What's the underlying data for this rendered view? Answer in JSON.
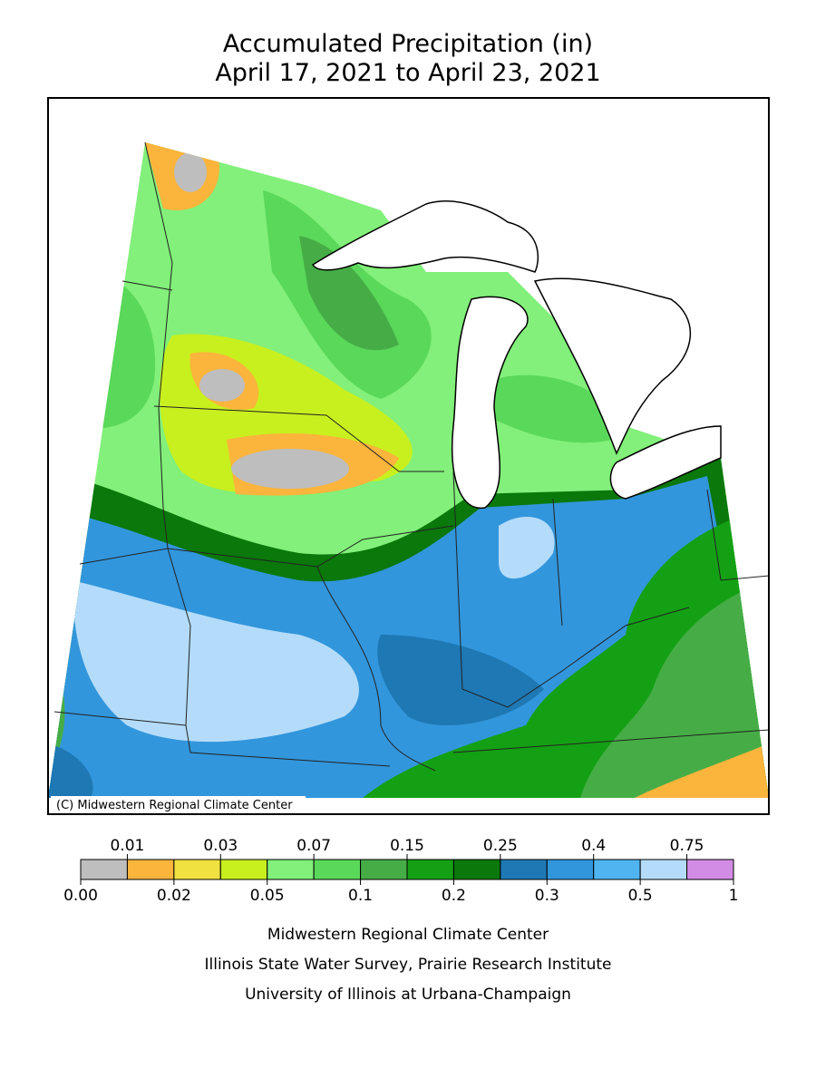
{
  "header": {
    "title": "Accumulated Precipitation (in)",
    "subtitle": "April 17, 2021 to April 23, 2021"
  },
  "map": {
    "copyright": "(C) Midwestern Regional Climate Center"
  },
  "legend": {
    "labels": [
      "0.00",
      "0.01",
      "0.02",
      "0.03",
      "0.05",
      "0.07",
      "0.1",
      "0.15",
      "0.2",
      "0.25",
      "0.3",
      "0.4",
      "0.5",
      "0.75",
      "1"
    ],
    "colors": [
      "#bebebe",
      "#fbb43c",
      "#f0e040",
      "#c8f01e",
      "#82f07a",
      "#5ad85a",
      "#46ad46",
      "#14a014",
      "#0a780a",
      "#1e78b4",
      "#3296dc",
      "#50b4f0",
      "#b4dcfa",
      "#d28ce6"
    ]
  },
  "footer": {
    "lines": [
      "Midwestern Regional Climate Center",
      "Illinois State Water Survey, Prairie Research Institute",
      "University of Illinois at Urbana-Champaign"
    ]
  }
}
